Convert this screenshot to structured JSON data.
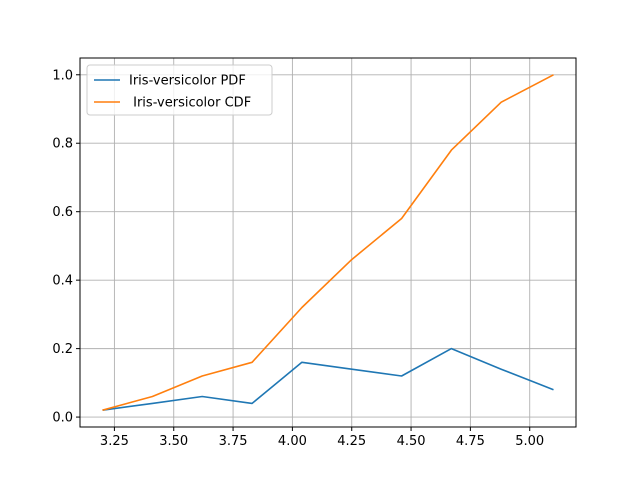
{
  "chart_data": {
    "type": "line",
    "title": "",
    "xlabel": "",
    "ylabel": "",
    "xlim": [
      3.105,
      5.195
    ],
    "ylim": [
      -0.029,
      1.049
    ],
    "xticks": [
      3.25,
      3.5,
      3.75,
      4.0,
      4.25,
      4.5,
      4.75,
      5.0
    ],
    "xtick_labels": [
      "3.25",
      "3.50",
      "3.75",
      "4.00",
      "4.25",
      "4.50",
      "4.75",
      "5.00"
    ],
    "yticks": [
      0.0,
      0.2,
      0.4,
      0.6,
      0.8,
      1.0
    ],
    "ytick_labels": [
      "0.0",
      "0.2",
      "0.4",
      "0.6",
      "0.8",
      "1.0"
    ],
    "grid": true,
    "legend_position": "top-left",
    "x": [
      3.2,
      3.41,
      3.62,
      3.83,
      4.04,
      4.25,
      4.46,
      4.67,
      4.88,
      5.1
    ],
    "series": [
      {
        "name": "Iris-versicolor PDF",
        "color": "#1f77b4",
        "values": [
          0.02,
          0.04,
          0.06,
          0.04,
          0.16,
          0.14,
          0.12,
          0.2,
          0.14,
          0.08
        ]
      },
      {
        "name": " Iris-versicolor CDF",
        "color": "#ff7f0e",
        "values": [
          0.02,
          0.06,
          0.12,
          0.16,
          0.32,
          0.46,
          0.58,
          0.78,
          0.92,
          1.0
        ]
      }
    ]
  }
}
